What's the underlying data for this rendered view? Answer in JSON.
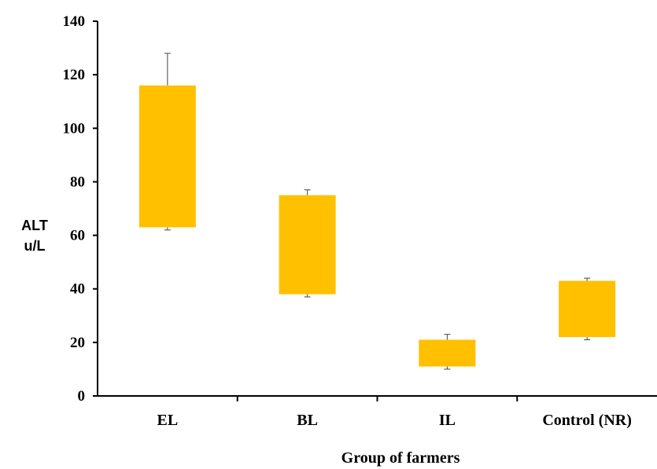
{
  "chart_data": {
    "type": "box",
    "title": "",
    "xlabel": "Group of farmers",
    "ylabel_line1": "ALT",
    "ylabel_line2": "u/L",
    "ylim": [
      0,
      140
    ],
    "yticks": [
      0,
      20,
      40,
      60,
      80,
      100,
      120,
      140
    ],
    "yticks_text": [
      "0",
      "20",
      "40",
      "60",
      "80",
      "100",
      "120",
      "140"
    ],
    "grid": false,
    "legend": "none",
    "box_color": "#FFC000",
    "categories": [
      "EL",
      "BL",
      "IL",
      "Control (NR)"
    ],
    "boxes": [
      {
        "low": 62,
        "q1": 63,
        "q3": 116,
        "high": 128
      },
      {
        "low": 37,
        "q1": 38,
        "q3": 75,
        "high": 77
      },
      {
        "low": 10,
        "q1": 11,
        "q3": 21,
        "high": 23
      },
      {
        "low": 21,
        "q1": 22,
        "q3": 43,
        "high": 44
      }
    ]
  }
}
